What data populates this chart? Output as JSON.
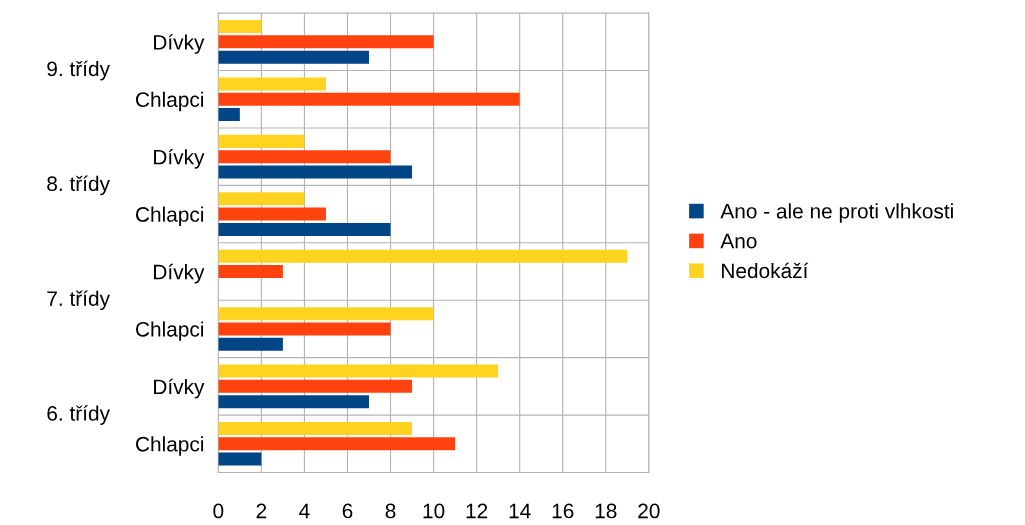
{
  "chart_data": {
    "type": "bar",
    "orientation": "horizontal",
    "categories": [
      "Dívky",
      "Chlapci",
      "Dívky",
      "Chlapci",
      "Dívky",
      "Chlapci",
      "Dívky",
      "Chlapci"
    ],
    "annotations": [
      "9. třídy",
      "8. třídy",
      "7. třídy",
      "6. třídy"
    ],
    "series": [
      {
        "name": "Ano - ale ne proti vlhkosti",
        "color": "#004586",
        "values": [
          7,
          1,
          9,
          8,
          0,
          3,
          7,
          2
        ]
      },
      {
        "name": "Ano",
        "color": "#ff420e",
        "values": [
          10,
          14,
          8,
          5,
          3,
          8,
          9,
          11
        ]
      },
      {
        "name": "Nedokáží",
        "color": "#ffd320",
        "values": [
          2,
          5,
          4,
          4,
          19,
          10,
          13,
          9
        ]
      }
    ],
    "xlim": [
      0,
      20
    ],
    "xticks": [
      0,
      2,
      4,
      6,
      8,
      10,
      12,
      14,
      16,
      18,
      20
    ],
    "grid": "x",
    "legend": "right"
  }
}
